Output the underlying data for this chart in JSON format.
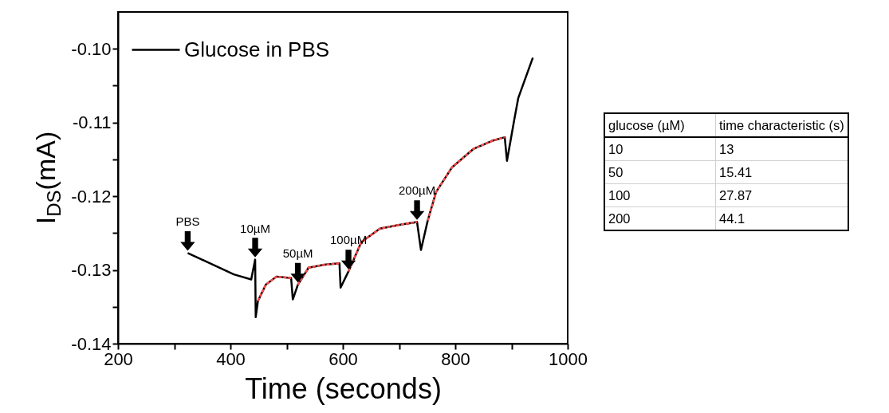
{
  "chart_data": [
    {
      "type": "line",
      "ylabel": "I$_{DS}$(mA)",
      "xlabel": "Time (seconds)",
      "xlim": [
        200,
        1000
      ],
      "ylim": [
        -0.14,
        -0.095
      ],
      "xticks": [
        200,
        {
          "value": 300,
          "label": null
        },
        400,
        {
          "value": 500,
          "label": null
        },
        600,
        {
          "value": 700,
          "label": null
        },
        800,
        {
          "value": 900,
          "label": null
        },
        1000
      ],
      "yticks": [
        {
          "value": -0.14,
          "label": "-0.14"
        },
        {
          "value": -0.135,
          "label": null
        },
        {
          "value": -0.13,
          "label": "-0.13"
        },
        {
          "value": -0.125,
          "label": null
        },
        {
          "value": -0.12,
          "label": "-0.12"
        },
        {
          "value": -0.115,
          "label": null
        },
        {
          "value": -0.11,
          "label": "-0.11"
        },
        {
          "value": -0.105,
          "label": null
        },
        {
          "value": -0.1,
          "label": "-0.10"
        }
      ],
      "legend": "top left",
      "series": [
        {
          "name": "Glucose in PBS",
          "color": "#000000",
          "line_style": "solid",
          "x": [
            324,
            406,
            437,
            444,
            445,
            449,
            463,
            482,
            508,
            511,
            520,
            539,
            567,
            594,
            596,
            610,
            633,
            666,
            699,
            732,
            739,
            751,
            766,
            794,
            832,
            865,
            888,
            892,
            905,
            912,
            938
          ],
          "values": [
            -0.1277,
            -0.1306,
            -0.1313,
            -0.1286,
            -0.1364,
            -0.1342,
            -0.132,
            -0.1309,
            -0.1311,
            -0.134,
            -0.132,
            -0.1297,
            -0.1293,
            -0.1291,
            -0.1324,
            -0.1302,
            -0.1262,
            -0.1244,
            -0.1239,
            -0.1235,
            -0.1273,
            -0.1233,
            -0.1194,
            -0.1161,
            -0.1136,
            -0.1125,
            -0.112,
            -0.1152,
            -0.1096,
            -0.1067,
            -0.1012
          ]
        },
        {
          "color": "#ff4a4a",
          "line_style": "dashed",
          "x": [
            449,
            463,
            482,
            508
          ],
          "values": [
            -0.1342,
            -0.132,
            -0.1309,
            -0.1311
          ]
        },
        {
          "color": "#ff4a4a",
          "line_style": "dashed",
          "x": [
            520,
            539,
            567,
            594
          ],
          "values": [
            -0.132,
            -0.1297,
            -0.1293,
            -0.1291
          ]
        },
        {
          "color": "#ff4a4a",
          "line_style": "dashed",
          "x": [
            610,
            633,
            666,
            699,
            732
          ],
          "values": [
            -0.1302,
            -0.1262,
            -0.1244,
            -0.1239,
            -0.1235
          ]
        },
        {
          "color": "#ff4a4a",
          "line_style": "dashed",
          "x": [
            751,
            766,
            794,
            832,
            865,
            888
          ],
          "values": [
            -0.1233,
            -0.1194,
            -0.1161,
            -0.1136,
            -0.1125,
            -0.112
          ]
        }
      ],
      "annotations": [
        {
          "text": "PBS",
          "x": 324,
          "y": -0.1277
        },
        {
          "text": "10µM",
          "x": 444,
          "y": -0.1286
        },
        {
          "text": "50µM",
          "x": 520,
          "y": -0.132
        },
        {
          "text": "100µM",
          "x": 610,
          "y": -0.1302
        },
        {
          "text": "200µM",
          "x": 732,
          "y": -0.1235
        }
      ]
    },
    {
      "type": "other",
      "annotations": [
        "glucose (µM)",
        "time characteristic (s)",
        "10",
        "13",
        "50",
        "15.41",
        "100",
        "27.87",
        "200",
        "44.1"
      ]
    }
  ]
}
